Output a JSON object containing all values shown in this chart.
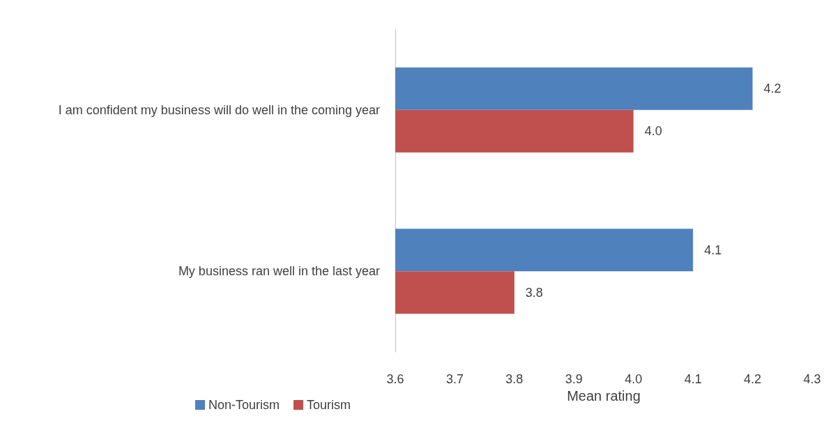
{
  "chart_data": {
    "type": "bar",
    "orientation": "horizontal",
    "xlabel": "Mean rating",
    "categories": [
      "I am confident my business will do well in the coming year",
      "My business ran well in the last year"
    ],
    "series": [
      {
        "name": "Non-Tourism",
        "color": "#4f81bd",
        "values": [
          4.2,
          4.1
        ],
        "value_labels": [
          "4.2",
          "4.1"
        ]
      },
      {
        "name": "Tourism",
        "color": "#c0504d",
        "values": [
          4.0,
          3.8
        ],
        "value_labels": [
          "4.0",
          "3.8"
        ]
      }
    ],
    "xlim": [
      3.6,
      4.3
    ],
    "xticks": [
      {
        "value": 3.6,
        "label": "3.6"
      },
      {
        "value": 3.7,
        "label": "3.7"
      },
      {
        "value": 3.8,
        "label": "3.8"
      },
      {
        "value": 3.9,
        "label": "3.9"
      },
      {
        "value": 4.0,
        "label": "4.0"
      },
      {
        "value": 4.1,
        "label": "4.1"
      },
      {
        "value": 4.2,
        "label": "4.2"
      },
      {
        "value": 4.3,
        "label": "4.3"
      }
    ],
    "grid": false,
    "legend": "bottom"
  }
}
